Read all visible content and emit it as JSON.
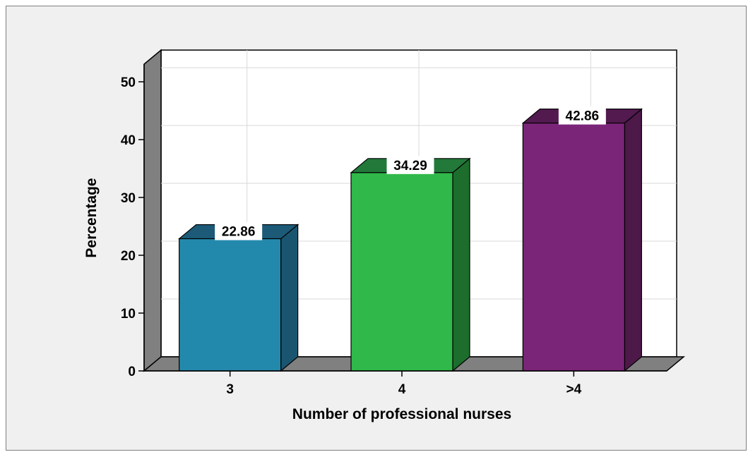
{
  "chart_data": {
    "type": "bar",
    "categories": [
      "3",
      "4",
      ">4"
    ],
    "values": [
      22.86,
      34.29,
      42.86
    ],
    "data_labels": [
      "22.86",
      "34.29",
      "42.86"
    ],
    "xlabel": "Number of professional nurses",
    "ylabel": "Percentage",
    "ylim": [
      0,
      50
    ],
    "yticks": [
      "0",
      "10",
      "20",
      "30",
      "40",
      "50"
    ],
    "grid": true,
    "style": "3d",
    "colors": {
      "bars": [
        "#2389ac",
        "#30b84a",
        "#7b2578"
      ],
      "bar_sides": [
        "#1a5570",
        "#1d6e2c",
        "#4d1949"
      ],
      "bar_tops": [
        "#1c5a78",
        "#22793a",
        "#521a4f"
      ],
      "walls": "#808080",
      "background": "#f0f0f0"
    }
  }
}
